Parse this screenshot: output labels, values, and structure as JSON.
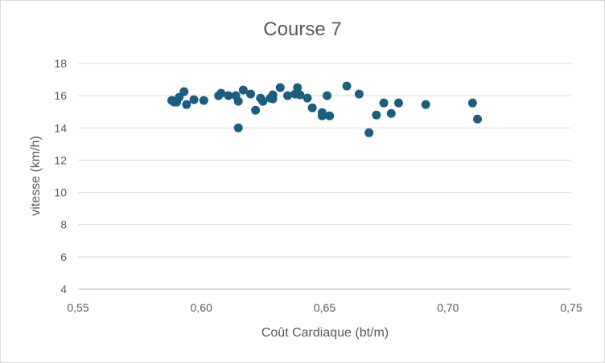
{
  "chart_data": {
    "type": "scatter",
    "title": "Course 7",
    "xlabel": "Coût Cardiaque (bt/m)",
    "ylabel": "vitesse (km/h)",
    "xlim": [
      0.55,
      0.75
    ],
    "ylim": [
      4,
      18
    ],
    "x_ticks": [
      0.55,
      0.6,
      0.65,
      0.7,
      0.75
    ],
    "x_tick_labels": [
      "0,55",
      "0,60",
      "0,65",
      "0,70",
      "0,75"
    ],
    "y_ticks": [
      4,
      6,
      8,
      10,
      12,
      14,
      16,
      18
    ],
    "y_tick_labels": [
      "4",
      "6",
      "8",
      "10",
      "12",
      "14",
      "16",
      "18"
    ],
    "grid": "horizontal",
    "legend": "none",
    "marker_color": "#1b5e80",
    "points": [
      {
        "x": 0.588,
        "y": 15.7
      },
      {
        "x": 0.589,
        "y": 15.6
      },
      {
        "x": 0.59,
        "y": 15.6
      },
      {
        "x": 0.591,
        "y": 15.9
      },
      {
        "x": 0.593,
        "y": 16.25
      },
      {
        "x": 0.594,
        "y": 15.45
      },
      {
        "x": 0.597,
        "y": 15.75
      },
      {
        "x": 0.601,
        "y": 15.7
      },
      {
        "x": 0.607,
        "y": 16.0
      },
      {
        "x": 0.608,
        "y": 16.15
      },
      {
        "x": 0.611,
        "y": 16.0
      },
      {
        "x": 0.614,
        "y": 16.0
      },
      {
        "x": 0.615,
        "y": 15.65
      },
      {
        "x": 0.615,
        "y": 14.0
      },
      {
        "x": 0.617,
        "y": 16.35
      },
      {
        "x": 0.62,
        "y": 16.1
      },
      {
        "x": 0.622,
        "y": 15.1
      },
      {
        "x": 0.624,
        "y": 15.85
      },
      {
        "x": 0.625,
        "y": 15.65
      },
      {
        "x": 0.628,
        "y": 15.85
      },
      {
        "x": 0.629,
        "y": 16.05
      },
      {
        "x": 0.629,
        "y": 15.8
      },
      {
        "x": 0.632,
        "y": 16.5
      },
      {
        "x": 0.635,
        "y": 16.0
      },
      {
        "x": 0.638,
        "y": 16.1
      },
      {
        "x": 0.639,
        "y": 16.5
      },
      {
        "x": 0.64,
        "y": 16.05
      },
      {
        "x": 0.643,
        "y": 15.85
      },
      {
        "x": 0.645,
        "y": 15.25
      },
      {
        "x": 0.649,
        "y": 14.95
      },
      {
        "x": 0.649,
        "y": 14.75
      },
      {
        "x": 0.651,
        "y": 16.0
      },
      {
        "x": 0.652,
        "y": 14.75
      },
      {
        "x": 0.659,
        "y": 16.6
      },
      {
        "x": 0.664,
        "y": 16.1
      },
      {
        "x": 0.668,
        "y": 13.7
      },
      {
        "x": 0.671,
        "y": 14.8
      },
      {
        "x": 0.674,
        "y": 15.55
      },
      {
        "x": 0.677,
        "y": 14.9
      },
      {
        "x": 0.68,
        "y": 15.55
      },
      {
        "x": 0.691,
        "y": 15.45
      },
      {
        "x": 0.71,
        "y": 15.55
      },
      {
        "x": 0.712,
        "y": 14.55
      }
    ]
  }
}
